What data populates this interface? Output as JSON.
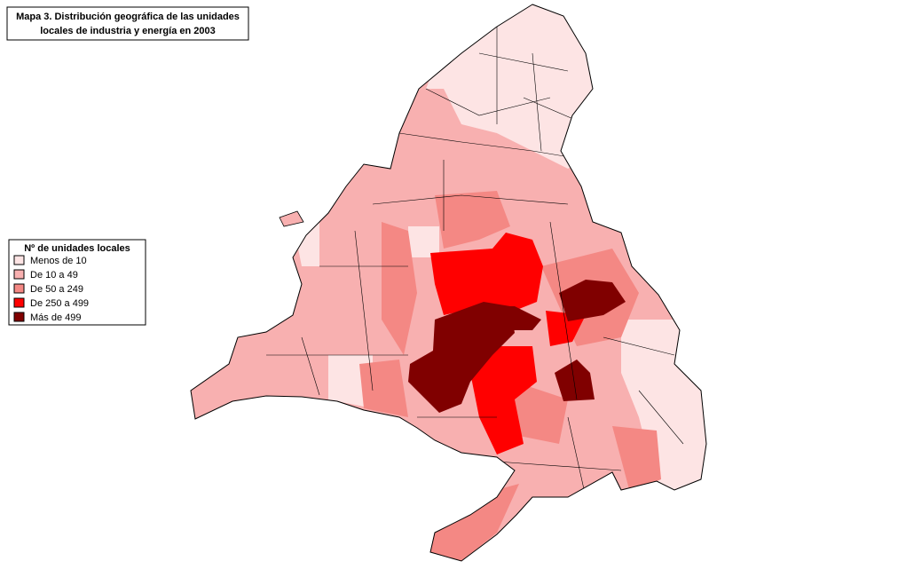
{
  "title": {
    "lines": [
      "Mapa 3. Distribución geográfica de las unidades",
      "locales de industria y energía en 2003"
    ]
  },
  "legend": {
    "title": "Nº de unidades locales",
    "items": [
      {
        "label": "Menos de 10",
        "color": "#fde4e4"
      },
      {
        "label": "De 10 a 49",
        "color": "#f8b0b0"
      },
      {
        "label": "De 50 a 249",
        "color": "#f48884"
      },
      {
        "label": "De 250 a 499",
        "color": "#ff0000"
      },
      {
        "label": "Más de 499",
        "color": "#800000"
      }
    ]
  }
}
